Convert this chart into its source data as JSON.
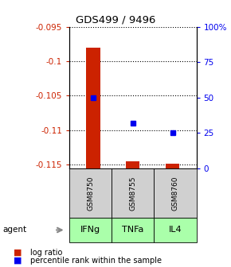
{
  "title": "GDS499 / 9496",
  "samples": [
    "GSM8750",
    "GSM8755",
    "GSM8760"
  ],
  "agents": [
    "IFNg",
    "TNFa",
    "IL4"
  ],
  "log_ratios": [
    -0.098,
    -0.1145,
    -0.1148
  ],
  "percentile_ranks": [
    50,
    32,
    25
  ],
  "ylim": [
    -0.1155,
    -0.095
  ],
  "yticks": [
    -0.095,
    -0.1,
    -0.105,
    -0.11,
    -0.115
  ],
  "ytick_labels": [
    "-0.095",
    "-0.1",
    "-0.105",
    "-0.11",
    "-0.115"
  ],
  "right_yticks": [
    0,
    25,
    50,
    75,
    100
  ],
  "right_ytick_labels": [
    "0",
    "25",
    "50",
    "75",
    "100%"
  ],
  "bar_color": "#cc2200",
  "dot_color": "#0000ee",
  "sample_bg": "#d0d0d0",
  "agent_bg": "#aaffaa",
  "legend_log_ratio": "log ratio",
  "legend_percentile": "percentile rank within the sample",
  "left_tick_color": "#cc2200",
  "right_tick_color": "#0000ee",
  "agent_label": "agent"
}
